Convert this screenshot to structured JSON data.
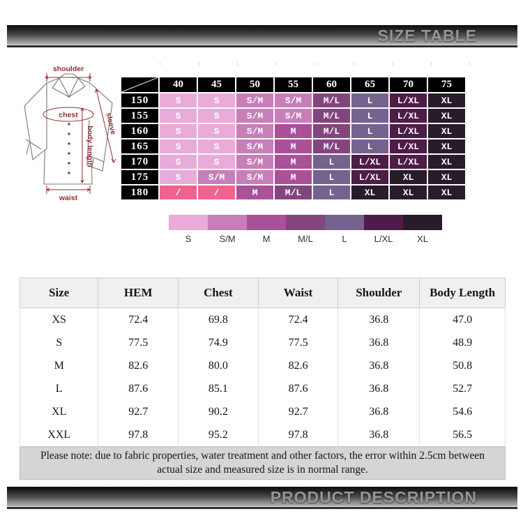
{
  "banners": {
    "size_table": "SIZE TABLE",
    "product_description": "PRODUCT DESCRIPTION"
  },
  "diagram": {
    "shoulder": "shoulder",
    "chest": "chest",
    "sleeve": "sleeve",
    "body_length": "body length",
    "waist": "waist"
  },
  "size_matrix": {
    "col_headers": [
      "40",
      "45",
      "50",
      "55",
      "60",
      "65",
      "70",
      "75"
    ],
    "rows": [
      {
        "label": "150",
        "cells": [
          "S",
          "S",
          "S/M",
          "S/M",
          "M/L",
          "L",
          "L/XL",
          "XL"
        ]
      },
      {
        "label": "155",
        "cells": [
          "S",
          "S",
          "S/M",
          "S/M",
          "M/L",
          "L",
          "L/XL",
          "XL"
        ]
      },
      {
        "label": "160",
        "cells": [
          "S",
          "S",
          "S/M",
          "M",
          "M/L",
          "L",
          "L/XL",
          "XL"
        ]
      },
      {
        "label": "165",
        "cells": [
          "S",
          "S",
          "S/M",
          "M",
          "M/L",
          "L",
          "L/XL",
          "XL"
        ]
      },
      {
        "label": "170",
        "cells": [
          "S",
          "S",
          "S/M",
          "M",
          "L",
          "L/XL",
          "L/XL",
          "XL"
        ]
      },
      {
        "label": "175",
        "cells": [
          "S",
          "S/M",
          "S/M",
          "M",
          "L",
          "L/XL",
          "XL",
          "XL"
        ]
      },
      {
        "label": "180",
        "cells": [
          "/",
          "/",
          "M",
          "M/L",
          "L",
          "XL",
          "XL",
          "XL"
        ]
      }
    ]
  },
  "legend": {
    "labels": [
      "S",
      "S/M",
      "M",
      "M/L",
      "L",
      "L/XL",
      "XL"
    ]
  },
  "measure_table": {
    "headers": [
      "Size",
      "HEM",
      "Chest",
      "Waist",
      "Shoulder",
      "Body Length"
    ],
    "rows": [
      [
        "XS",
        "72.4",
        "69.8",
        "72.4",
        "36.8",
        "47.0"
      ],
      [
        "S",
        "77.5",
        "74.9",
        "77.5",
        "36.8",
        "48.9"
      ],
      [
        "M",
        "82.6",
        "80.0",
        "82.6",
        "36.8",
        "50.8"
      ],
      [
        "L",
        "87.6",
        "85.1",
        "87.6",
        "36.8",
        "52.7"
      ],
      [
        "XL",
        "92.7",
        "90.2",
        "92.7",
        "36.8",
        "54.6"
      ],
      [
        "XXL",
        "97.8",
        "95.2",
        "97.8",
        "36.8",
        "56.5"
      ]
    ],
    "note": "Please note: due to fabric properties, water treatment and other factors, the error within 2.5cm between actual size and measured size is in normal range."
  },
  "colors": {
    "S": "#e8abda",
    "S/M": "#c77eb9",
    "M": "#ab5198",
    "M/L": "#82467e",
    "L": "#76628e",
    "L/XL": "#4e1c48",
    "XL": "#281c2b",
    "slash": "#f2628f",
    "annotation_red": "#8e2f2f",
    "banner_text": "#959595"
  }
}
